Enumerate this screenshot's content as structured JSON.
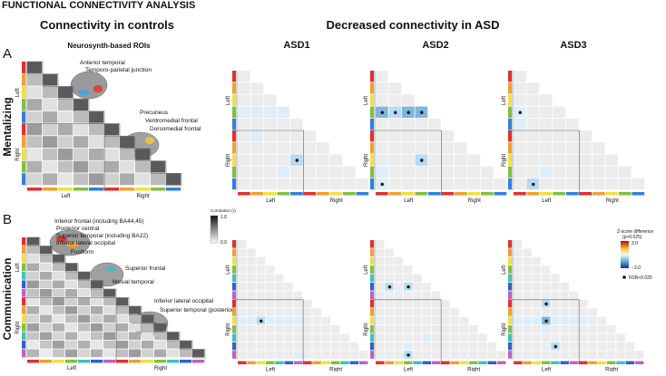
{
  "title": "FUNCTIONAL CONNECTIVITY ANALYSIS",
  "headers": {
    "controls": "Connectivity in controls",
    "asd": "Decreased connectivity in ASD"
  },
  "columns": [
    "ASD1",
    "ASD2",
    "ASD3"
  ],
  "hemispheres": [
    "Left",
    "Right"
  ],
  "panels": [
    {
      "letter": "A",
      "row_label": "Mentalizing",
      "subtitle": "Neurosynth-based ROIs",
      "roi_labels": [
        "Anterior temporal",
        "Temporo-parietal junction",
        "Precuneus",
        "Ventromedial frontal",
        "Dorsomedial frontal"
      ]
    },
    {
      "letter": "B",
      "row_label": "Communication",
      "roi_labels": [
        "Inferior frontal (including BA44,45)",
        "Posterior central",
        "Superior temporal (including BA22)",
        "Inferior lateral occipital",
        "Fusiform",
        "Superior frontal",
        "Mesial temporal",
        "Inferior lateral occipital",
        "Superior temporal (posterior)"
      ]
    }
  ],
  "correlation_bar": {
    "title": "Correlation (r)",
    "max": "1.0",
    "min": "0.0"
  },
  "zscore_bar": {
    "title": "Z-score difference",
    "subtitle": "(p<0.025)",
    "max": "3.0",
    "min": "−3.0"
  },
  "fdr_legend": "FDR<0.025"
}
